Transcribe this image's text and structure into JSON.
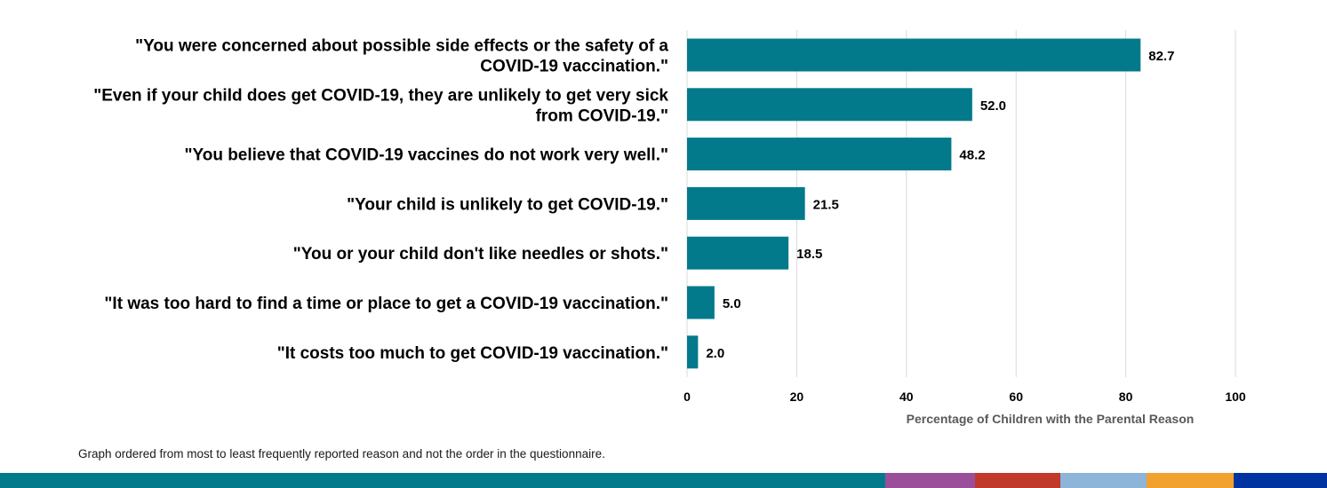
{
  "chart_data": {
    "type": "bar",
    "orientation": "horizontal",
    "categories": [
      [
        "\"You were concerned about possible side effects or the safety of a",
        "COVID-19 vaccination.\""
      ],
      [
        "\"Even if your child does get COVID-19, they are unlikely to get very sick",
        "from COVID-19.\""
      ],
      [
        "\"You believe that COVID-19 vaccines do not work very well.\""
      ],
      [
        "\"Your child is unlikely to get COVID-19.\""
      ],
      [
        "\"You or your child don't like needles or shots.\""
      ],
      [
        "\"It was too hard to find a time or place to get a COVID-19 vaccination.\""
      ],
      [
        "\"It costs too much to get COVID-19 vaccination.\""
      ]
    ],
    "values": [
      82.7,
      52.0,
      48.2,
      21.5,
      18.5,
      5.0,
      2.0
    ],
    "value_labels": [
      "82.7",
      "52.0",
      "48.2",
      "21.5",
      "18.5",
      "5.0",
      "2.0"
    ],
    "xlabel": "Percentage of Children with the Parental Reason",
    "xlim": [
      0,
      100
    ],
    "xticks": [
      0,
      20,
      40,
      60,
      80,
      100
    ],
    "grid": "vertical",
    "bar_color": "#037a8c",
    "gridline_color": "#d9d9d9",
    "axis_title_color": "#595959"
  },
  "footnote": "Graph ordered from most to least frequently reported reason and not the order in the questionnaire.",
  "color_strip": [
    {
      "color": "#037a8c",
      "weight": 996
    },
    {
      "color": "#9b4f9b",
      "weight": 101
    },
    {
      "color": "#c0392b",
      "weight": 96
    },
    {
      "color": "#8db4d9",
      "weight": 97
    },
    {
      "color": "#f2a12e",
      "weight": 98
    },
    {
      "color": "#0033a0",
      "weight": 105
    }
  ]
}
